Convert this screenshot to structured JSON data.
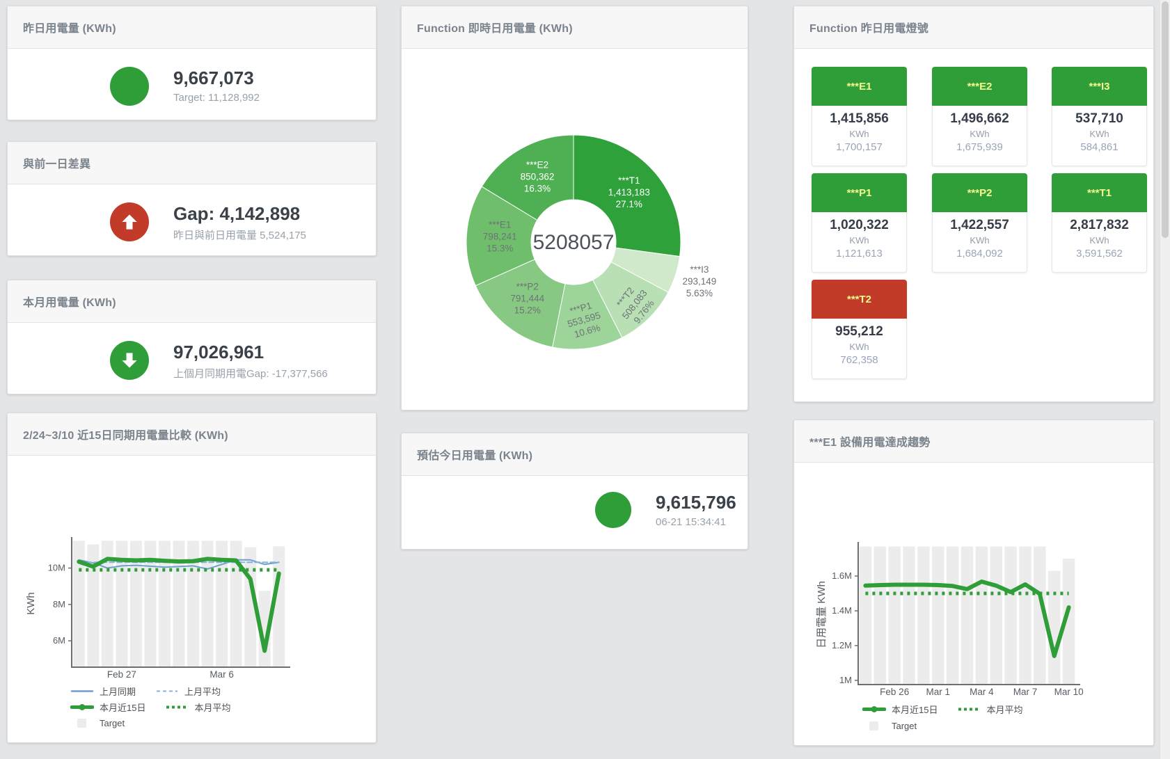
{
  "colors": {
    "green": "#2f9e38",
    "red": "#c13b28",
    "blue_line": "#6e9fd0",
    "blue_dashed": "#85b2dd",
    "target_bar": "#ececec",
    "tile_head_text": "#f5f98e"
  },
  "stat_cards": [
    {
      "title": "昨日用電量 (KWh)",
      "icon": "circle",
      "icon_color": "#2f9e38",
      "value": "9,667,073",
      "subtitle": "Target: 11,128,992"
    },
    {
      "title": "與前一日差異",
      "icon": "arrow-up",
      "icon_color": "#c13b28",
      "value": "Gap: 4,142,898",
      "subtitle": "昨日與前日用電量 5,524,175"
    },
    {
      "title": "本月用電量 (KWh)",
      "icon": "arrow-down",
      "icon_color": "#2f9e38",
      "value": "97,026,961",
      "subtitle": "上個月同期用電Gap: -17,377,566"
    },
    {
      "title": "預估今日用電量 (KWh)",
      "icon": "circle",
      "icon_color": "#2f9e38",
      "value": "9,615,796",
      "subtitle": "06-21 15:34:41"
    }
  ],
  "donut_card": {
    "title": "Function 即時日用電量 (KWh)"
  },
  "lights_card": {
    "title": "Function 昨日用電燈號",
    "unit": "KWh",
    "tiles": [
      {
        "label": "***E1",
        "value": "1,415,856",
        "target": "1,700,157",
        "status_color": "#2f9e38"
      },
      {
        "label": "***E2",
        "value": "1,496,662",
        "target": "1,675,939",
        "status_color": "#2f9e38"
      },
      {
        "label": "***I3",
        "value": "537,710",
        "target": "584,861",
        "status_color": "#2f9e38"
      },
      {
        "label": "***P1",
        "value": "1,020,322",
        "target": "1,121,613",
        "status_color": "#2f9e38"
      },
      {
        "label": "***P2",
        "value": "1,422,557",
        "target": "1,684,092",
        "status_color": "#2f9e38"
      },
      {
        "label": "***T1",
        "value": "2,817,832",
        "target": "3,591,562",
        "status_color": "#2f9e38"
      },
      {
        "label": "***T2",
        "value": "955,212",
        "target": "762,358",
        "status_color": "#c13b28"
      }
    ]
  },
  "compare_card": {
    "title": "2/24~3/10 近15日同期用電量比較 (KWh)"
  },
  "trend_card": {
    "title": "***E1 設備用電達成趨勢"
  },
  "chart_data": [
    {
      "id": "realtime-donut",
      "type": "pie",
      "title": "Function 即時日用電量 (KWh)",
      "center_total": "5208057",
      "slices": [
        {
          "name": "***T1",
          "value": 1413183,
          "pct_label": "27.1%",
          "color": "#2fa13a",
          "label_color": "#ffffff"
        },
        {
          "name": "***I3",
          "value": 293149,
          "pct_label": "5.63%",
          "color": "#d0e9cb",
          "label_color": "#6d7378",
          "outside": true
        },
        {
          "name": "***T2",
          "value": 508083,
          "pct_label": "9.76%",
          "color": "#b9e0b4",
          "label_color": "#6d7378",
          "rotate": -52,
          "label_r": 127
        },
        {
          "name": "***P1",
          "value": 553595,
          "pct_label": "10.6%",
          "color": "#9dd49a",
          "label_color": "#6d7378",
          "rotate": -16,
          "label_r": 114
        },
        {
          "name": "***P2",
          "value": 791444,
          "pct_label": "15.2%",
          "color": "#87c983",
          "label_color": "#6d7378"
        },
        {
          "name": "***E1",
          "value": 798241,
          "pct_label": "15.3%",
          "color": "#6fbe6c",
          "label_color": "#6d7378"
        },
        {
          "name": "***E2",
          "value": 850362,
          "pct_label": "16.3%",
          "color": "#4fb053",
          "label_color": "#ffffff"
        }
      ]
    },
    {
      "id": "compare-15d",
      "type": "line+bar",
      "title": "2/24~3/10 近15日同期用電量比較 (KWh)",
      "ylabel": "KWh",
      "unit": "M = million KWh",
      "ylim": [
        4.55,
        11.55
      ],
      "yticks": [
        {
          "v": 6,
          "label": "6M"
        },
        {
          "v": 8,
          "label": "8M"
        },
        {
          "v": 10,
          "label": "10M"
        }
      ],
      "xticks": [
        {
          "i": 3,
          "label": "Feb 27"
        },
        {
          "i": 10,
          "label": "Mar 6"
        }
      ],
      "target_bars": {
        "name": "Target",
        "color": "#ececec",
        "values": [
          11.5,
          11.3,
          11.5,
          11.5,
          11.5,
          11.5,
          11.5,
          11.5,
          11.5,
          11.5,
          11.5,
          11.5,
          11.15,
          8.75,
          11.2
        ]
      },
      "series": [
        {
          "name": "上月同期",
          "dash": "solid",
          "color": "#6e9fd0",
          "width": 2,
          "values": [
            10.45,
            10.28,
            10.0,
            10.12,
            10.15,
            10.1,
            10.05,
            10.08,
            10.12,
            9.95,
            10.2,
            10.45,
            10.45,
            10.2,
            10.32
          ]
        },
        {
          "name": "上月平均",
          "dash": "dashed",
          "color": "#85b2dd",
          "width": 2,
          "const": 10.32
        },
        {
          "name": "本月近15日",
          "dash": "solid",
          "color": "#2f9e38",
          "width": 6,
          "values": [
            10.35,
            10.08,
            10.5,
            10.45,
            10.42,
            10.45,
            10.4,
            10.36,
            10.38,
            10.5,
            10.45,
            10.42,
            9.4,
            5.45,
            9.7
          ]
        },
        {
          "name": "本月平均",
          "dash": "dotted",
          "color": "#2f9e38",
          "width": 5,
          "const": 9.9
        }
      ],
      "legend_rows": [
        [
          "上月同期",
          "上月平均"
        ],
        [
          "本月近15日",
          "本月平均"
        ],
        [
          "Target"
        ]
      ]
    },
    {
      "id": "e1-trend",
      "type": "line+bar",
      "title": "***E1 設備用電達成趨勢",
      "ylabel": "日用電量 KWh",
      "unit": "M = million KWh",
      "ylim": [
        0.976,
        1.78
      ],
      "yticks": [
        {
          "v": 1,
          "label": "1M"
        },
        {
          "v": 1.2,
          "label": "1.2M"
        },
        {
          "v": 1.4,
          "label": "1.4M"
        },
        {
          "v": 1.6,
          "label": "1.6M"
        }
      ],
      "xticks": [
        {
          "i": 2,
          "label": "Feb 26"
        },
        {
          "i": 5,
          "label": "Mar 1"
        },
        {
          "i": 8,
          "label": "Mar 4"
        },
        {
          "i": 11,
          "label": "Mar 7"
        },
        {
          "i": 14,
          "label": "Mar 10"
        }
      ],
      "target_bars": {
        "name": "Target",
        "color": "#ececec",
        "values": [
          1.77,
          1.77,
          1.77,
          1.77,
          1.77,
          1.77,
          1.77,
          1.77,
          1.77,
          1.77,
          1.77,
          1.77,
          1.77,
          1.63,
          1.7
        ]
      },
      "series": [
        {
          "name": "本月近15日",
          "dash": "solid",
          "color": "#2f9e38",
          "width": 6,
          "values": [
            1.545,
            1.548,
            1.55,
            1.55,
            1.55,
            1.548,
            1.543,
            1.525,
            1.568,
            1.545,
            1.508,
            1.552,
            1.498,
            1.14,
            1.42
          ]
        },
        {
          "name": "本月平均",
          "dash": "dotted",
          "color": "#2f9e38",
          "width": 5,
          "const": 1.5
        }
      ],
      "legend_rows": [
        [
          "本月近15日",
          "本月平均"
        ],
        [
          "Target"
        ]
      ]
    }
  ]
}
